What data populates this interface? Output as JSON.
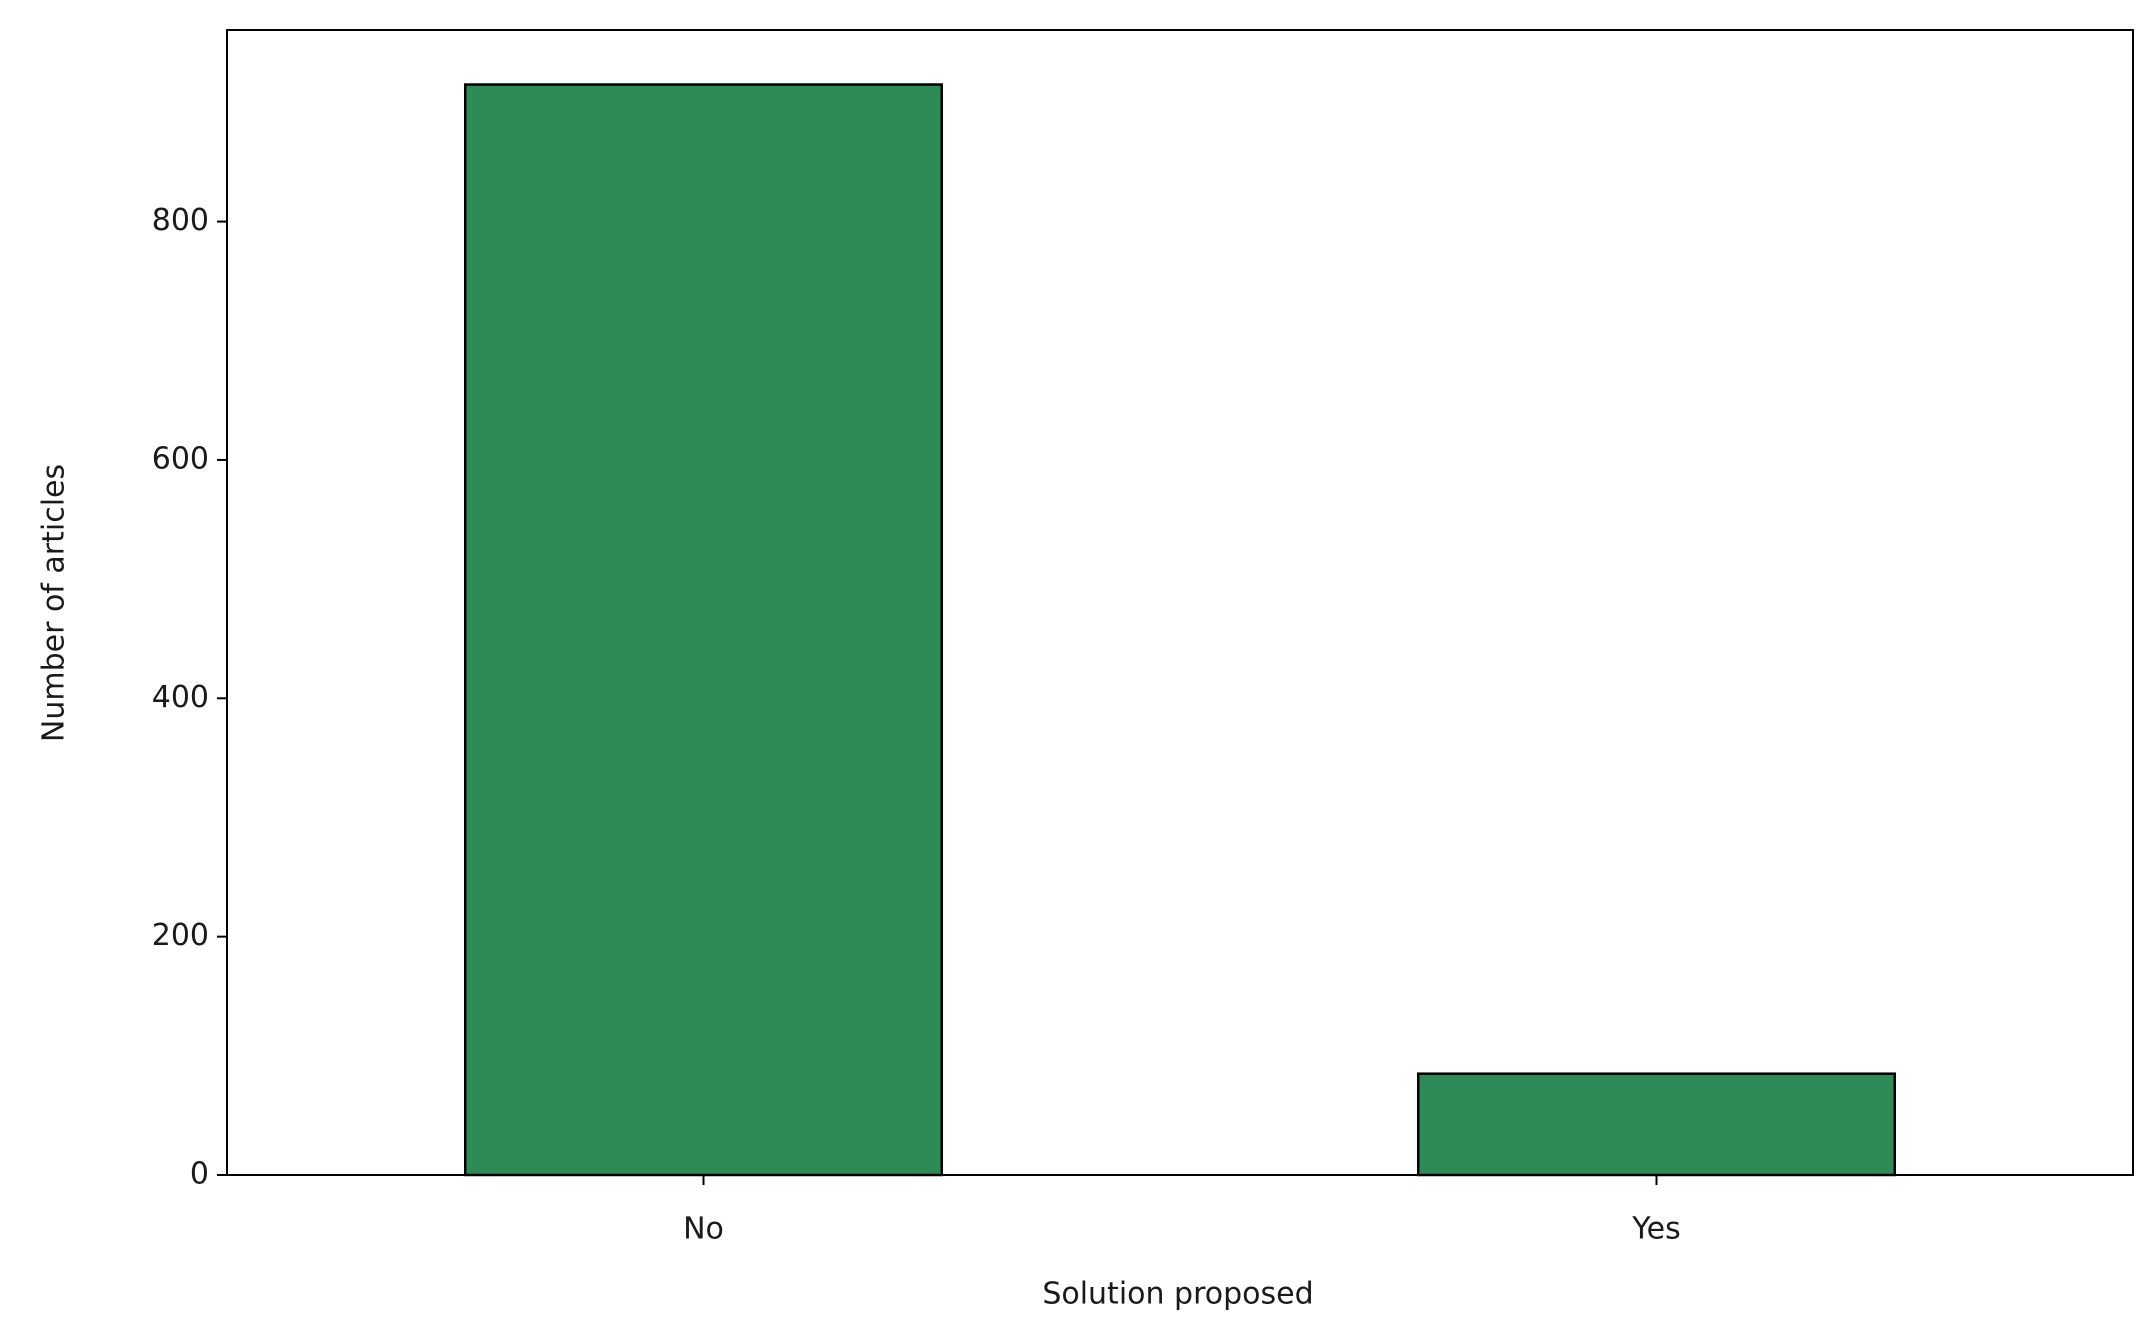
{
  "chart_data": {
    "type": "bar",
    "x_label": "Solution proposed",
    "y_label": "Number of articles",
    "categories": [
      "No",
      "Yes"
    ],
    "values": [
      915,
      85
    ],
    "color": "#2e8b57",
    "ylim": [
      0,
      960.75
    ],
    "yticks": [
      0,
      200,
      400,
      600,
      800
    ]
  }
}
